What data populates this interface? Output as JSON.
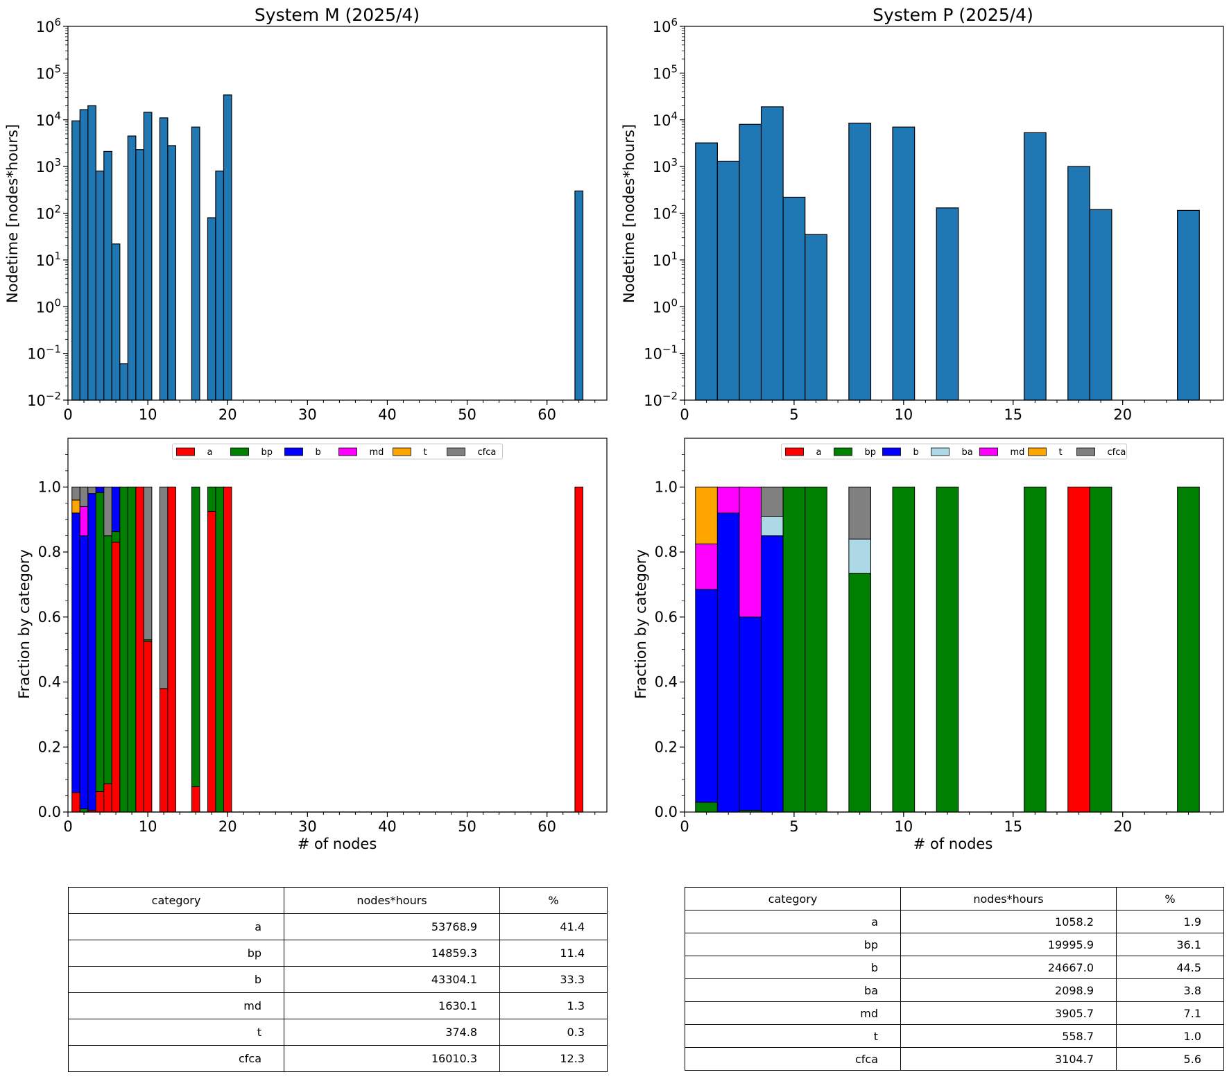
{
  "charts": [
    {
      "title": "System M (2025/4)",
      "xlabel": "# of nodes",
      "ylabel_top": "Nodetime [nodes*hours]",
      "ylabel_bottom": "Fraction by category",
      "xlim": [
        0,
        67.5
      ],
      "xticks": [
        0,
        10,
        20,
        30,
        40,
        50,
        60
      ],
      "bar_width": 1,
      "legend": [
        "a",
        "bp",
        "b",
        "md",
        "t",
        "cfca"
      ]
    },
    {
      "title": "System P (2025/4)",
      "xlabel": "# of nodes",
      "ylabel_top": "Nodetime [nodes*hours]",
      "ylabel_bottom": "Fraction by category",
      "xlim": [
        0,
        24.6
      ],
      "xticks": [
        0,
        5,
        10,
        15,
        20
      ],
      "bar_width": 1,
      "legend": [
        "a",
        "bp",
        "b",
        "ba",
        "md",
        "t",
        "cfca"
      ]
    }
  ],
  "category_colors": {
    "a": "#ff0000",
    "bp": "#008000",
    "b": "#0000ff",
    "ba": "#add8e6",
    "md": "#ff00ff",
    "t": "#ffa500",
    "cfca": "#808080"
  },
  "chart_data": [
    {
      "type": "bar",
      "title": "System M (2025/4)",
      "xlabel": "",
      "ylabel": "Nodetime [nodes*hours]",
      "yscale": "log",
      "ylim": [
        0.01,
        1000000
      ],
      "x": [
        1,
        2,
        3,
        4,
        5,
        6,
        7,
        8,
        9,
        10,
        12,
        13,
        16,
        18,
        19,
        20,
        64
      ],
      "values": [
        9500,
        16500,
        20000,
        800,
        2100,
        22,
        0.06,
        4500,
        2300,
        14500,
        11000,
        2800,
        7000,
        80,
        800,
        34000,
        300
      ],
      "color": "#1f77b4"
    },
    {
      "type": "bar",
      "title": "",
      "xlabel": "# of nodes",
      "ylabel": "Fraction by category",
      "stacked": true,
      "ylim": [
        0,
        1.15
      ],
      "legend_position": "top-center",
      "x": [
        1,
        2,
        3,
        4,
        5,
        6,
        7,
        8,
        9,
        10,
        12,
        13,
        16,
        18,
        19,
        20,
        64
      ],
      "series": [
        {
          "name": "a",
          "values": [
            0.06,
            0.0,
            0.005,
            0.063,
            0.087,
            0.83,
            0,
            0,
            1.0,
            0.525,
            0.38,
            1.0,
            0.078,
            0.925,
            0,
            1.0,
            1.0
          ]
        },
        {
          "name": "bp",
          "values": [
            0,
            0.01,
            0,
            0.92,
            0.763,
            0.033,
            1.0,
            1.0,
            0,
            0.005,
            0,
            0,
            0.922,
            0.075,
            1.0,
            0,
            0
          ]
        },
        {
          "name": "b",
          "values": [
            0.86,
            0.84,
            0.975,
            0.017,
            0,
            0.137,
            0,
            0,
            0,
            0,
            0,
            0,
            0,
            0,
            0,
            0,
            0
          ]
        },
        {
          "name": "md",
          "values": [
            0,
            0.09,
            0,
            0,
            0,
            0,
            0,
            0,
            0,
            0,
            0,
            0,
            0,
            0,
            0,
            0,
            0
          ]
        },
        {
          "name": "t",
          "values": [
            0.04,
            0,
            0,
            0,
            0,
            0,
            0,
            0,
            0,
            0,
            0,
            0,
            0,
            0,
            0,
            0,
            0
          ]
        },
        {
          "name": "cfca",
          "values": [
            0.04,
            0.06,
            0.02,
            0,
            0.15,
            0,
            0,
            0,
            0,
            0.47,
            0.62,
            0,
            0,
            0,
            0,
            0,
            0
          ]
        }
      ]
    },
    {
      "type": "bar",
      "title": "System P (2025/4)",
      "xlabel": "",
      "ylabel": "Nodetime [nodes*hours]",
      "yscale": "log",
      "ylim": [
        0.01,
        1000000
      ],
      "x": [
        1,
        2,
        3,
        4,
        5,
        6,
        8,
        10,
        12,
        16,
        18,
        19,
        23
      ],
      "values": [
        3200,
        1300,
        8000,
        19000,
        220,
        35,
        8500,
        7000,
        130,
        5300,
        1000,
        120,
        115
      ],
      "color": "#1f77b4"
    },
    {
      "type": "bar",
      "title": "",
      "xlabel": "# of nodes",
      "ylabel": "Fraction by category",
      "stacked": true,
      "ylim": [
        0,
        1.15
      ],
      "legend_position": "top-center",
      "x": [
        1,
        2,
        3,
        4,
        5,
        6,
        8,
        10,
        12,
        16,
        18,
        19,
        23
      ],
      "series": [
        {
          "name": "a",
          "values": [
            0,
            0,
            0,
            0,
            0,
            0,
            0,
            0,
            0,
            0,
            1.0,
            0,
            0
          ]
        },
        {
          "name": "bp",
          "values": [
            0.03,
            0,
            0.005,
            0,
            1.0,
            1.0,
            0.735,
            1.0,
            1.0,
            1.0,
            0,
            1.0,
            1.0
          ]
        },
        {
          "name": "b",
          "values": [
            0.655,
            0.92,
            0.595,
            0.85,
            0,
            0,
            0,
            0,
            0,
            0,
            0,
            0,
            0
          ]
        },
        {
          "name": "ba",
          "values": [
            0,
            0,
            0,
            0.06,
            0,
            0,
            0.105,
            0,
            0,
            0,
            0,
            0,
            0
          ]
        },
        {
          "name": "md",
          "values": [
            0.14,
            0.08,
            0.4,
            0,
            0,
            0,
            0,
            0,
            0,
            0,
            0,
            0,
            0
          ]
        },
        {
          "name": "t",
          "values": [
            0.175,
            0,
            0,
            0,
            0,
            0,
            0,
            0,
            0,
            0,
            0,
            0,
            0
          ]
        },
        {
          "name": "cfca",
          "values": [
            0,
            0,
            0,
            0.09,
            0,
            0,
            0.16,
            0,
            0,
            0,
            0,
            0,
            0
          ]
        }
      ]
    },
    {
      "type": "table",
      "columns": [
        "category",
        "nodes*hours",
        "%"
      ],
      "rows": [
        [
          "a",
          "53768.9",
          "41.4"
        ],
        [
          "bp",
          "14859.3",
          "11.4"
        ],
        [
          "b",
          "43304.1",
          "33.3"
        ],
        [
          "md",
          "1630.1",
          "1.3"
        ],
        [
          "t",
          "374.8",
          "0.3"
        ],
        [
          "cfca",
          "16010.3",
          "12.3"
        ]
      ]
    },
    {
      "type": "table",
      "columns": [
        "category",
        "nodes*hours",
        "%"
      ],
      "rows": [
        [
          "a",
          "1058.2",
          "1.9"
        ],
        [
          "bp",
          "19995.9",
          "36.1"
        ],
        [
          "b",
          "24667.0",
          "44.5"
        ],
        [
          "ba",
          "2098.9",
          "3.8"
        ],
        [
          "md",
          "3905.7",
          "7.1"
        ],
        [
          "t",
          "558.7",
          "1.0"
        ],
        [
          "cfca",
          "3104.7",
          "5.6"
        ]
      ]
    }
  ]
}
